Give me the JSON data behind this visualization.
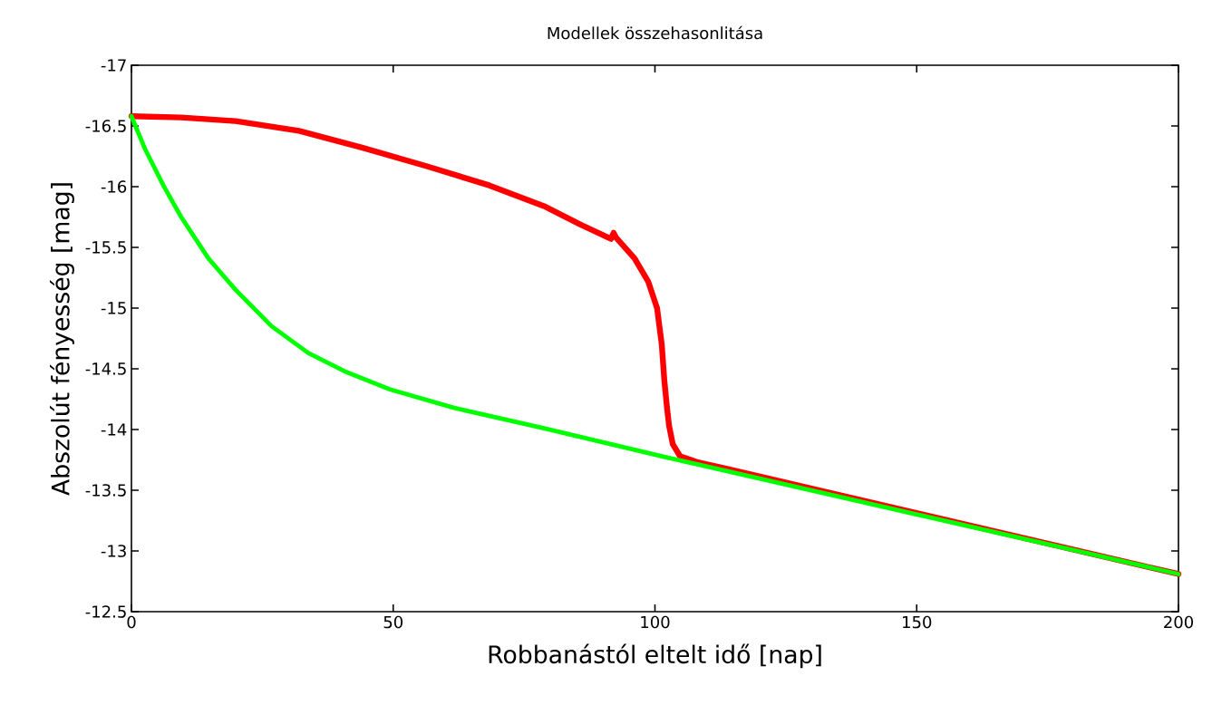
{
  "chart_data": {
    "type": "line",
    "title": "Modellek összehasonlitása",
    "xlabel": "Robbanástól eltelt idő [nap]",
    "ylabel": "Abszolút fényesség [mag]",
    "xlim": [
      0,
      200
    ],
    "xticks": [
      0,
      50,
      100,
      150,
      200
    ],
    "ylim": [
      -12.5,
      -17
    ],
    "yticks": [
      -17,
      -16.5,
      -16,
      -15.5,
      -15,
      -14.5,
      -14,
      -13.5,
      -13,
      -12.5
    ],
    "series": [
      {
        "color": "#ff0000",
        "x": [
          0,
          9.5,
          19.9,
          32.0,
          44.2,
          56.3,
          68.4,
          78.8,
          85.7,
          91.6,
          92.1,
          92.6,
          96.1,
          98.7,
          100.4,
          101.3,
          101.8,
          102.3,
          102.7,
          103.4,
          104.8,
          108.2,
          113.4,
          200
        ],
        "values": [
          -16.58,
          -16.57,
          -16.54,
          -16.46,
          -16.32,
          -16.17,
          -16.01,
          -15.84,
          -15.69,
          -15.57,
          -15.62,
          -15.58,
          -15.41,
          -15.22,
          -15.0,
          -14.7,
          -14.4,
          -14.18,
          -14.03,
          -13.88,
          -13.78,
          -13.73,
          -13.68,
          -12.81
        ]
      },
      {
        "color": "#00ff00",
        "x": [
          0,
          2.6,
          6.1,
          9.5,
          14.7,
          19.9,
          26.8,
          33.8,
          40.7,
          49.4,
          61.5,
          78.8,
          102.3,
          200
        ],
        "values": [
          -16.58,
          -16.31,
          -16.01,
          -15.75,
          -15.41,
          -15.15,
          -14.85,
          -14.63,
          -14.48,
          -14.33,
          -14.18,
          -14.01,
          -13.77,
          -12.81
        ]
      }
    ]
  }
}
